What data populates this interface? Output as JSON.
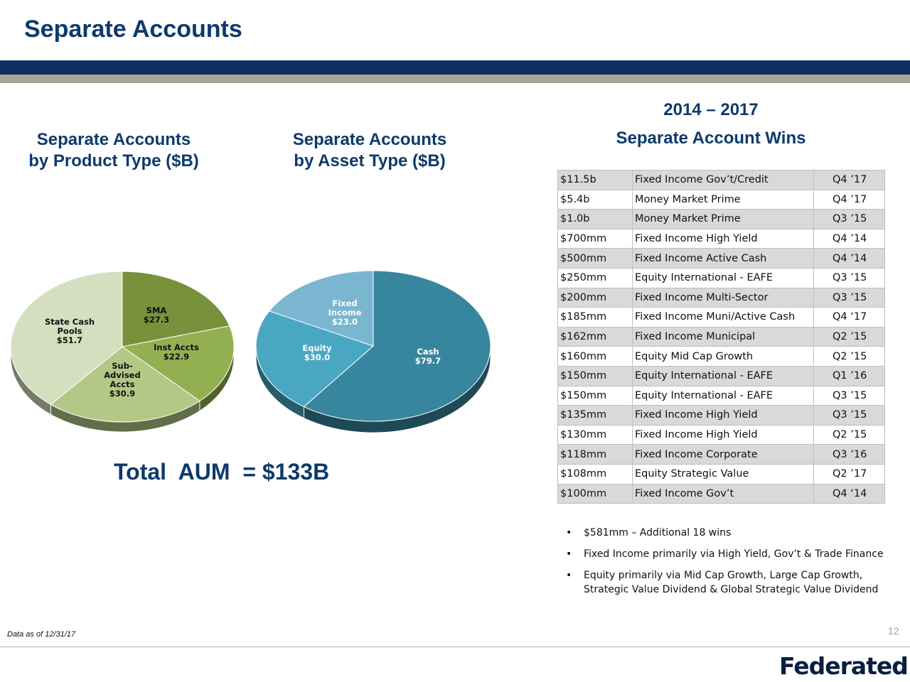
{
  "title": "Separate Accounts",
  "headings": {
    "product_line1": "Separate Accounts",
    "product_line2": "by Product Type ($B)",
    "asset_line1": "Separate Accounts",
    "asset_line2": "by Asset Type ($B)",
    "wins_years": "2014 – 2017",
    "wins_title": "Separate Account Wins"
  },
  "chart_data": [
    {
      "type": "pie",
      "title": "Separate Accounts by Product Type ($B)",
      "slices": [
        {
          "label": "SMA",
          "value": 27.3,
          "value_label": "$27.3",
          "color": "#77923a"
        },
        {
          "label": "Inst Accts",
          "value": 22.9,
          "value_label": "$22.9",
          "color": "#93b050"
        },
        {
          "label": "Sub-Advised Accts",
          "value": 30.9,
          "value_label": "$30.9",
          "color": "#b3c886"
        },
        {
          "label": "State Cash Pools",
          "value": 51.7,
          "value_label": "$51.7",
          "color": "#d3dfbe"
        }
      ]
    },
    {
      "type": "pie",
      "title": "Separate Accounts by Asset Type ($B)",
      "slices": [
        {
          "label": "Cash",
          "value": 79.7,
          "value_label": "$79.7",
          "color": "#37869e"
        },
        {
          "label": "Equity",
          "value": 30.0,
          "value_label": "$30.0",
          "color": "#4aa7c2"
        },
        {
          "label": "Fixed Income",
          "value": 23.0,
          "value_label": "$23.0",
          "color": "#7ab6cf"
        }
      ]
    }
  ],
  "pie_text": {
    "product": {
      "sma": [
        "SMA",
        "$27.3"
      ],
      "inst": [
        "Inst Accts",
        "$22.9"
      ],
      "sub": [
        "Sub-",
        "Advised",
        "Accts",
        "$30.9"
      ],
      "state": [
        "State Cash",
        "Pools",
        "$51.7"
      ]
    },
    "asset": {
      "fixed": [
        "Fixed",
        "Income",
        "$23.0"
      ],
      "equity": [
        "Equity",
        "$30.0"
      ],
      "cash": [
        "Cash",
        "$79.7"
      ]
    }
  },
  "total_aum": "Total  AUM  = $133B",
  "wins_table": [
    [
      "$11.5b",
      "Fixed Income Gov’t/Credit",
      "Q4 ’17"
    ],
    [
      "$5.4b",
      "Money Market Prime",
      "Q4 ’17"
    ],
    [
      "$1.0b",
      "Money Market Prime",
      "Q3 ’15"
    ],
    [
      "$700mm",
      "Fixed Income High Yield",
      "Q4 ’14"
    ],
    [
      "$500mm",
      "Fixed Income Active Cash",
      "Q4 ’14"
    ],
    [
      "$250mm",
      "Equity International - EAFE",
      "Q3 ’15"
    ],
    [
      "$200mm",
      "Fixed Income Multi-Sector",
      "Q3 ’15"
    ],
    [
      "$185mm",
      "Fixed Income Muni/Active Cash",
      "Q4 ‘17"
    ],
    [
      "$162mm",
      "Fixed Income Municipal",
      "Q2 ’15"
    ],
    [
      "$160mm",
      "Equity Mid Cap Growth",
      "Q2 ’15"
    ],
    [
      "$150mm",
      "Equity International - EAFE",
      "Q1 ’16"
    ],
    [
      "$150mm",
      "Equity International - EAFE",
      "Q3 ’15"
    ],
    [
      "$135mm",
      "Fixed Income High Yield",
      "Q3 ’15"
    ],
    [
      "$130mm",
      "Fixed Income High Yield",
      "Q2 ’15"
    ],
    [
      "$118mm",
      "Fixed Income Corporate",
      "Q3 ’16"
    ],
    [
      "$108mm",
      "Equity Strategic Value",
      "Q2 ’17"
    ],
    [
      "$100mm",
      "Fixed Income Gov’t",
      "Q4 ‘14"
    ]
  ],
  "notes": [
    "$581mm – Additional 18 wins",
    "Fixed Income primarily via High Yield, Gov’t & Trade Finance",
    "Equity primarily via Mid Cap Growth, Large Cap Growth, Strategic Value Dividend & Global Strategic Value Dividend"
  ],
  "bullet": "•",
  "footnote": "Data as of 12/31/17",
  "page_number": "12",
  "logo": "Federated",
  "logo_mark": "®"
}
